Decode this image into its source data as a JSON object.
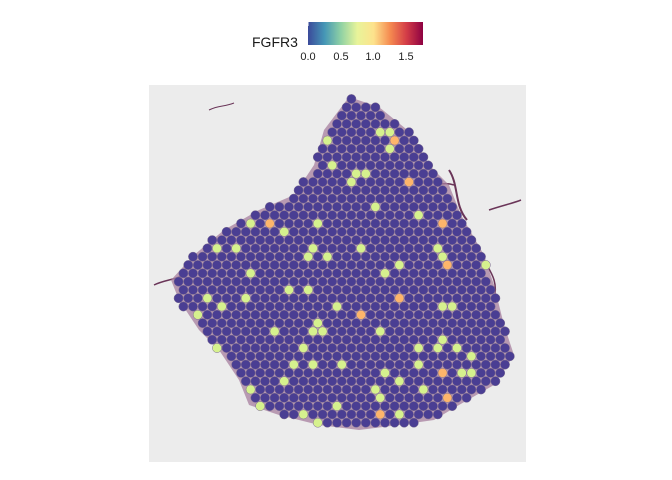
{
  "legend": {
    "title": "FGFR3",
    "ticks": [
      "0.0",
      "0.5",
      "1.0",
      "1.5"
    ],
    "tick_values": [
      0.0,
      0.5,
      1.0,
      1.5
    ],
    "range": [
      0.0,
      1.75
    ],
    "palette": [
      "#3b4a9a",
      "#4596b6",
      "#8fd1a4",
      "#e8f49a",
      "#fde28c",
      "#f58a50",
      "#d33c47",
      "#8e0142"
    ]
  },
  "spots": {
    "base_color": "#4a3e93",
    "low_color": "#d6f18e",
    "mid_color": "#fdb56b"
  }
}
